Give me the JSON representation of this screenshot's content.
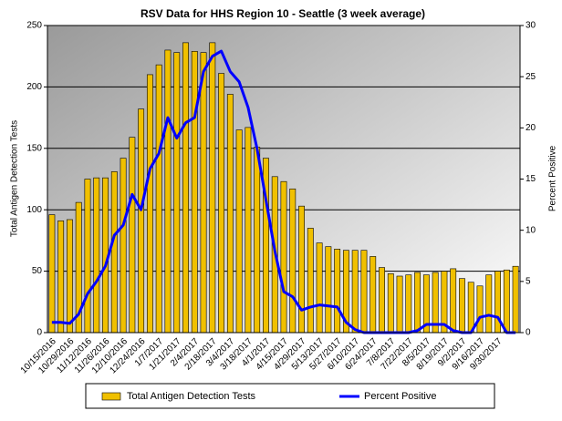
{
  "chart_data": {
    "type": "bar",
    "title": "RSV Data for HHS Region 10 - Seattle (3 week average)",
    "y_label": "Total Antigen Detection Tests",
    "y2_label": "Percent Positive",
    "categories": [
      "10/15/2016",
      null,
      "10/29/2016",
      null,
      "11/12/2016",
      null,
      "11/26/2016",
      null,
      "12/10/2016",
      null,
      "12/24/2016",
      null,
      "1/7/2017",
      null,
      "1/21/2017",
      null,
      "2/4/2017",
      null,
      "2/18/2017",
      null,
      "3/4/2017",
      null,
      "3/18/2017",
      null,
      "4/1/2017",
      null,
      "4/15/2017",
      null,
      "4/29/2017",
      null,
      "5/13/2017",
      null,
      "5/27/2017",
      null,
      "6/10/2017",
      null,
      "6/24/2017",
      null,
      "7/8/2017",
      null,
      "7/22/2017",
      null,
      "8/5/2017",
      null,
      "8/19/2017",
      null,
      "9/2/2017",
      null,
      "9/16/2017",
      null,
      "9/30/2017",
      null,
      null
    ],
    "series": [
      {
        "name": "Total Antigen Detection Tests",
        "type": "bar",
        "color": "#f0c000",
        "values": [
          96,
          91,
          92,
          106,
          125,
          126,
          126,
          131,
          142,
          159,
          182,
          210,
          218,
          230,
          228,
          236,
          229,
          228,
          236,
          211,
          194,
          165,
          167,
          151,
          142,
          127,
          123,
          117,
          103,
          85,
          73,
          70,
          68,
          67,
          67,
          67,
          62,
          53,
          48,
          46,
          47,
          49,
          47,
          49,
          50,
          52,
          44,
          41,
          38,
          47,
          50,
          51,
          54
        ]
      },
      {
        "name": "Percent Positive",
        "type": "line",
        "axis": "y2",
        "color": "#0000ff",
        "values": [
          1,
          1,
          0.9,
          1.8,
          3.8,
          5,
          6.5,
          9.5,
          10.5,
          13.5,
          12,
          16,
          17.5,
          21,
          19,
          20.5,
          21,
          25.5,
          27,
          27.5,
          25.5,
          24.5,
          22,
          18,
          13,
          8,
          4,
          3.5,
          2.2,
          2.5,
          2.7,
          2.6,
          2.5,
          1,
          0.3,
          0,
          0,
          0,
          0,
          0,
          0,
          0.2,
          0.8,
          0.8,
          0.8,
          0.2,
          0,
          0,
          1.5,
          1.7,
          1.5,
          0,
          0
        ]
      }
    ],
    "ylim": [
      0,
      250
    ],
    "yticks": [
      0,
      50,
      100,
      150,
      200,
      250
    ],
    "y2lim": [
      0,
      30
    ],
    "y2ticks": [
      0,
      5,
      10,
      15,
      20,
      25,
      30
    ],
    "grid": true,
    "legend": "bottom"
  }
}
